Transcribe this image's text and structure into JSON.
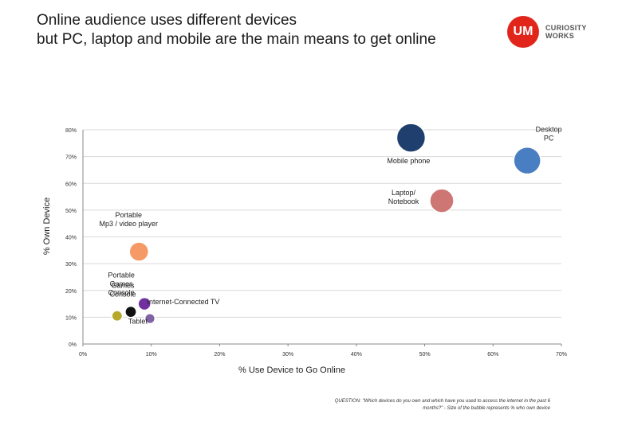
{
  "title_line1": "Online audience uses different devices",
  "title_line2": "but PC, laptop and mobile are the main means to get online",
  "logo": {
    "mark": "UM",
    "brand_line1": "CURIOSITY",
    "brand_line2": "WORKS",
    "color": "#e1251b"
  },
  "question": "QUESTION: \"Which devices do you own and which have you used to access the internet in the past 6 months?\" - Size of the bubble represents % who own device",
  "chart_data": {
    "type": "scatter",
    "xlabel": "% Use Device to Go Online",
    "ylabel": "% Own Device",
    "xlim": [
      0,
      70
    ],
    "ylim": [
      0,
      80
    ],
    "x_ticks": [
      "0%",
      "10%",
      "20%",
      "30%",
      "40%",
      "50%",
      "60%",
      "70%"
    ],
    "y_ticks": [
      "0%",
      "10%",
      "20%",
      "30%",
      "40%",
      "50%",
      "60%",
      "70%",
      "80%"
    ],
    "grid": true,
    "points": [
      {
        "label": "Mobile phone",
        "x": 48,
        "y": 77,
        "color": "#1f3f6e"
      },
      {
        "label": "Desktop PC",
        "x": 65,
        "y": 68.5,
        "color": "#4a7ec2"
      },
      {
        "label": "Laptop/ Notebook",
        "x": 52.5,
        "y": 53.5,
        "color": "#cd7673"
      },
      {
        "label": "Portable Mp3 / video player",
        "x": 8.2,
        "y": 34.5,
        "color": "#f59a66"
      },
      {
        "label": "Portable Games Console",
        "x": 9,
        "y": 15,
        "color": "#7030a0"
      },
      {
        "label": "Games Console",
        "x": 7,
        "y": 12,
        "color": "#111111"
      },
      {
        "label": "Internet-Connected TV",
        "x": 9.8,
        "y": 9.5,
        "color": "#8064a2"
      },
      {
        "label": "Tablet",
        "x": 5,
        "y": 10.5,
        "color": "#b5a82b"
      }
    ]
  }
}
